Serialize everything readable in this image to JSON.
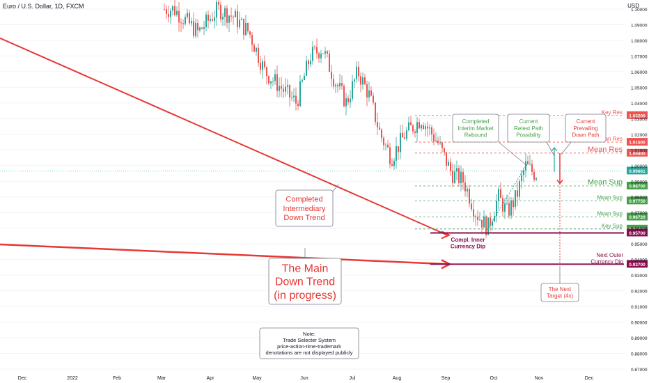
{
  "header": {
    "symbol": "Euro / U.S. Dollar, 1D, FXCM",
    "currency": "USD"
  },
  "colors": {
    "bull": "#26a69a",
    "bear": "#ef5350",
    "resistance": "#e53935",
    "support": "#43a047",
    "target": "#880e4f",
    "current": "#26a69a"
  },
  "chart_data": {
    "type": "candlestick",
    "ylim": [
      0.87,
      1.1
    ],
    "y_ticks": [
      "1.10000",
      "1.09000",
      "1.08000",
      "1.07000",
      "1.06000",
      "1.05000",
      "1.04000",
      "1.03000",
      "1.02000",
      "1.01000",
      "1.00000",
      "0.99000",
      "0.98000",
      "0.97000",
      "0.96000",
      "0.95000",
      "0.94000",
      "0.93000",
      "0.92000",
      "0.91000",
      "0.90000",
      "0.89000",
      "0.88000",
      "0.87000"
    ],
    "x_ticks": [
      "Dec",
      "2022",
      "Feb",
      "Mar",
      "Apr",
      "May",
      "Jun",
      "Jul",
      "Aug",
      "Sep",
      "Oct",
      "Nov",
      "Dec"
    ],
    "current_price": {
      "label": "0.99661",
      "value": 0.99661
    },
    "price_path": [
      [
        "Mar",
        1.1
      ],
      [
        "Mar",
        1.085
      ],
      [
        "Apr",
        1.1
      ],
      [
        "Apr",
        1.095
      ],
      [
        "Apr",
        1.085
      ],
      [
        "May",
        1.06
      ],
      [
        "May",
        1.05
      ],
      [
        "May",
        1.04
      ],
      [
        "Jun",
        1.07
      ],
      [
        "Jun",
        1.075
      ],
      [
        "Jun",
        1.055
      ],
      [
        "Jun",
        1.04
      ],
      [
        "Jul",
        1.06
      ],
      [
        "Jul",
        1.045
      ],
      [
        "Jul",
        1.02
      ],
      [
        "Jul",
        1.005
      ],
      [
        "Aug",
        1.02
      ],
      [
        "Aug",
        1.03
      ],
      [
        "Aug",
        1.015
      ],
      [
        "Sep",
        0.995
      ],
      [
        "Sep",
        0.99
      ],
      [
        "Sep",
        0.97
      ],
      [
        "Sep",
        0.96
      ],
      [
        "Oct",
        0.98
      ],
      [
        "Oct",
        0.97
      ],
      [
        "Oct",
        0.98
      ],
      [
        "Oct",
        1.0
      ],
      [
        "Oct",
        0.995
      ]
    ],
    "levels": [
      {
        "name": "Key Res",
        "value": 1.032,
        "label": "1.03200",
        "color": "#ef5350",
        "text_size": "small"
      },
      {
        "name": "Mean Res",
        "value": 1.015,
        "label": "1.01500",
        "color": "#ef5350",
        "text_size": "small"
      },
      {
        "name": "Mean Res",
        "value": 1.008,
        "label": "1.00800",
        "color": "#ef5350",
        "text_size": "large"
      },
      {
        "name": "Mean Sup",
        "value": 0.987,
        "label": "0.98700",
        "color": "#43a047",
        "text_size": "large"
      },
      {
        "name": "Mean Sup",
        "value": 0.9775,
        "label": "0.97750",
        "color": "#43a047",
        "text_size": "small"
      },
      {
        "name": "Mean Sup",
        "value": 0.9672,
        "label": "0.96720",
        "color": "#43a047",
        "text_size": "small"
      },
      {
        "name": "Key Sup",
        "value": 0.9595,
        "label": "0.95950",
        "color": "#43a047",
        "text_size": "small"
      },
      {
        "name": "",
        "value": 0.957,
        "label": "0.95700",
        "color": "#880e4f",
        "text_size": "none"
      },
      {
        "name": "",
        "value": 0.937,
        "label": "0.93700",
        "color": "#880e4f",
        "text_size": "none"
      }
    ],
    "annotations": {
      "intermediary": "Completed\nIntermediary\nDown Trend",
      "main": "The Main\nDown Trend\n(in progress)",
      "inner_dip": "Compl. Inner\nCurrency Dip",
      "outer_dip": "Next Outer\nCurrency Dip",
      "interim": "Completed\nInterim Market\nRebound",
      "retest": "Current\nRetest Path\nPossibility",
      "prevailing": "Current\nPrevailing\nDown Path",
      "target": "The Next\nTarget (4x)",
      "note": "Note:\nTrade Selecter System\nprice-action-time-trademark\ndenotations are not displayed publicly"
    }
  }
}
